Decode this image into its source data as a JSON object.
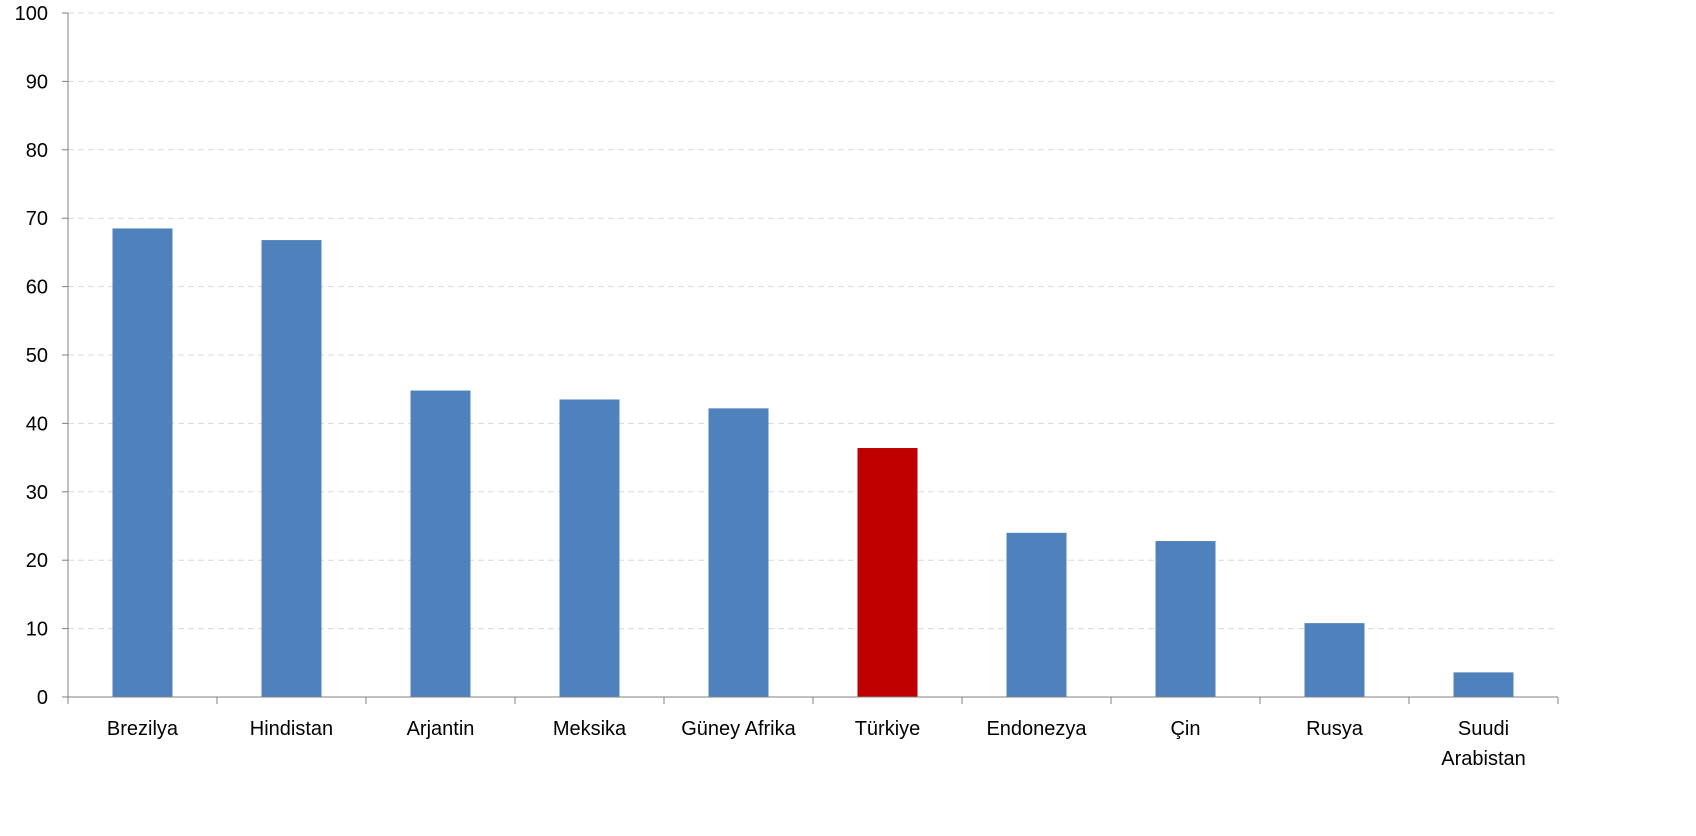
{
  "chart_data": {
    "type": "bar",
    "title": "",
    "xlabel": "",
    "ylabel": "",
    "ylim": [
      0,
      100
    ],
    "yticks": [
      0,
      10,
      20,
      30,
      40,
      50,
      60,
      70,
      80,
      90,
      100
    ],
    "grid": true,
    "categories": [
      "Brezilya",
      "Hindistan",
      "Arjantin",
      "Meksika",
      "Güney Afrika",
      "Türkiye",
      "Endonezya",
      "Çin",
      "Rusya",
      "Suudi Arabistan"
    ],
    "values": [
      68.5,
      66.8,
      44.8,
      43.5,
      42.2,
      36.4,
      24.0,
      22.8,
      10.8,
      3.6
    ],
    "colors": {
      "default": "#4F81BD",
      "highlight": "#C00000",
      "gridline": "#D9D9D9",
      "axis": "#808080"
    },
    "highlight_category": "Türkiye"
  }
}
